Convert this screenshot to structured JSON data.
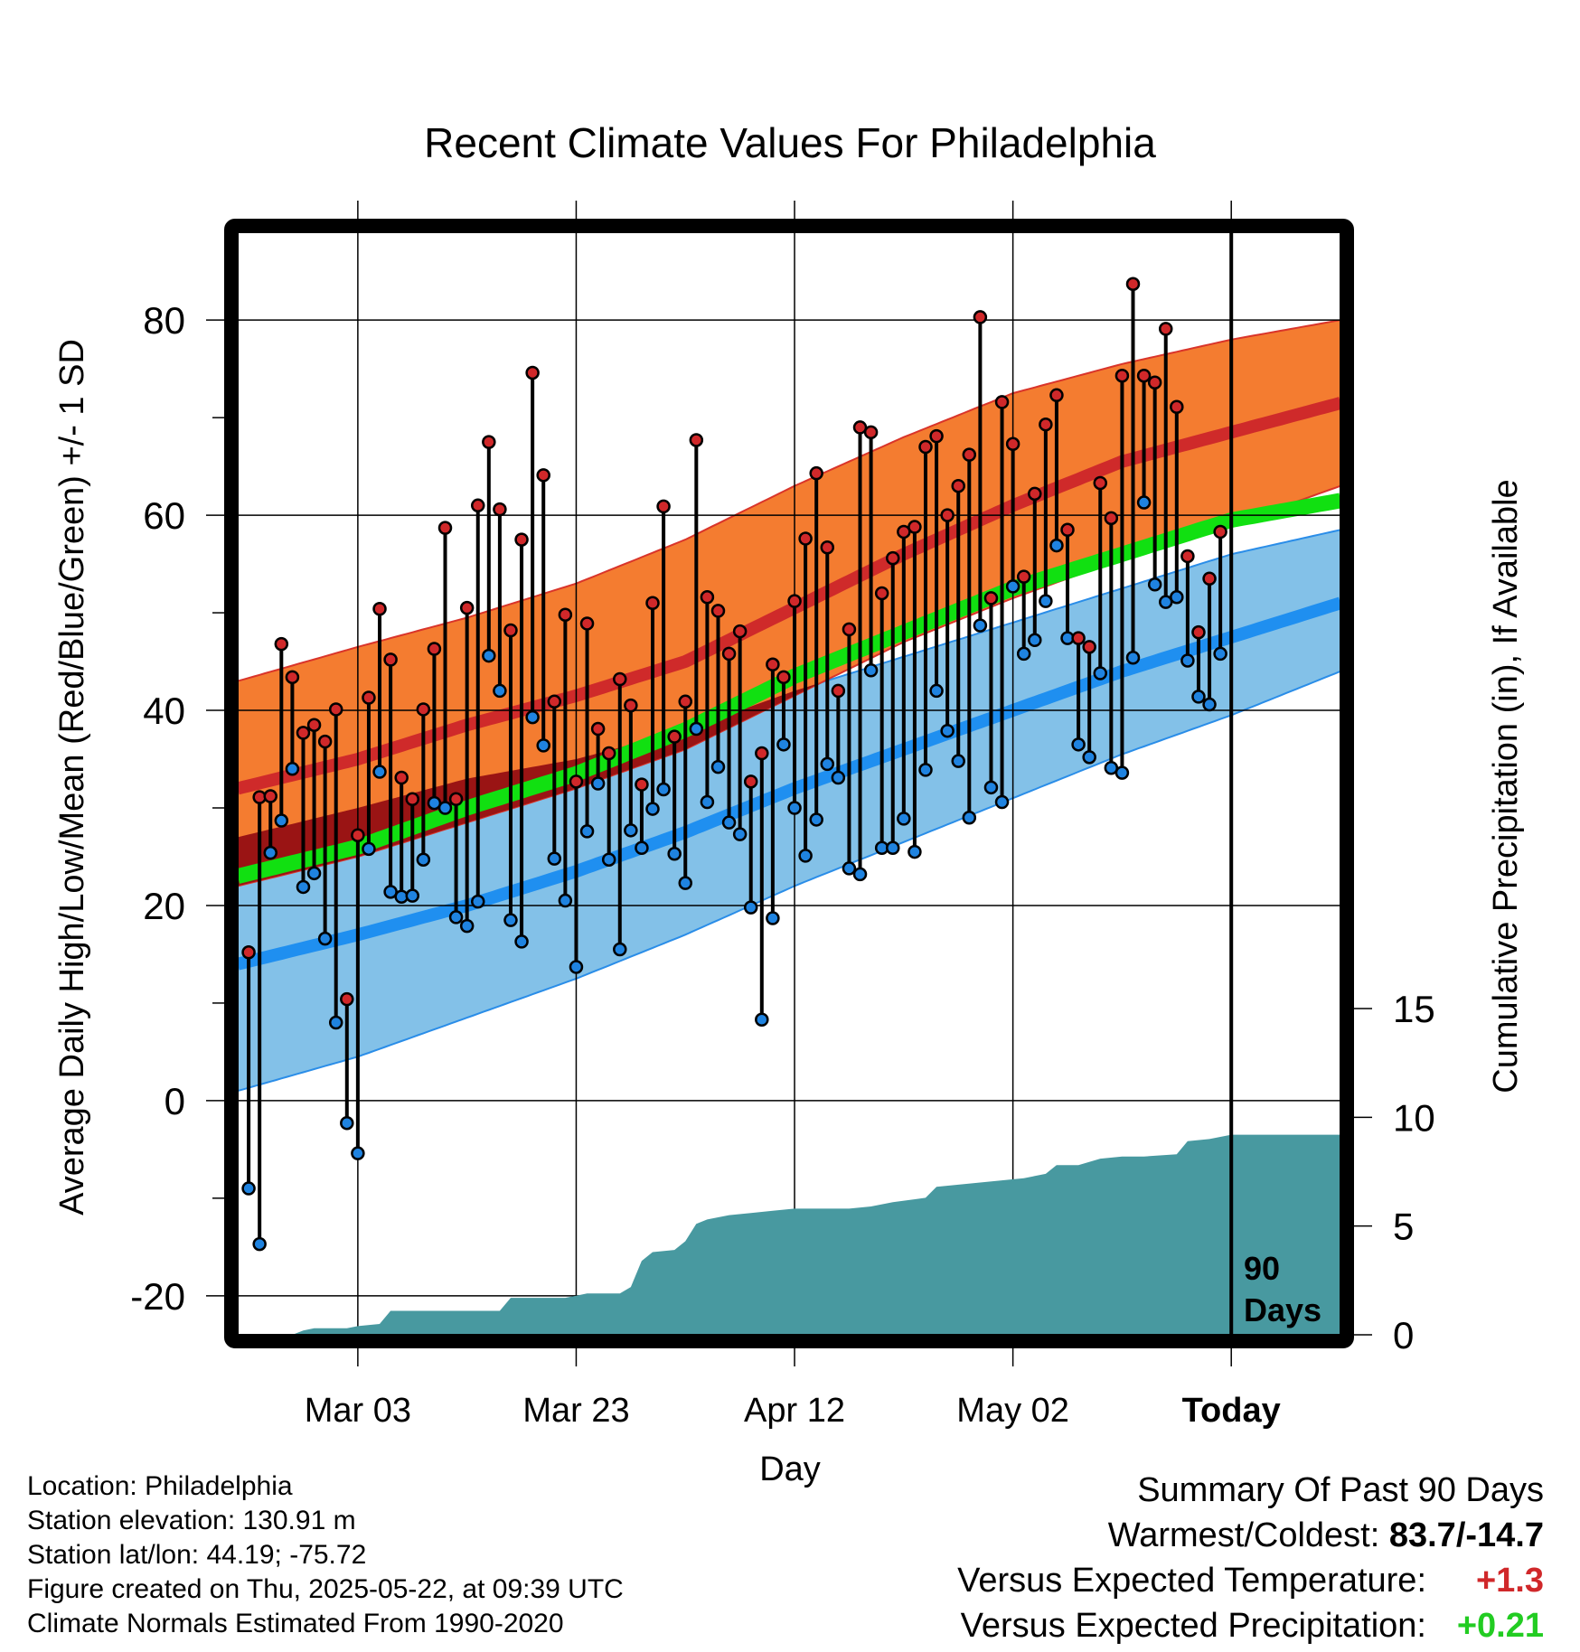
{
  "chart_data": {
    "type": "line",
    "title": "Recent Climate Values For Philadelphia",
    "xlabel": "Day",
    "ylabel": "Average Daily High/Low/Mean (Red/Blue/Green) +/- 1 SD",
    "ylabel_right": "Cumulative Precipitation (in), If Available",
    "ylim": [
      -24,
      89
    ],
    "y_ticks": [
      "80",
      "60",
      "40",
      "20",
      "0",
      "-20"
    ],
    "y_tick_values": [
      80,
      60,
      40,
      20,
      0,
      -20
    ],
    "y2_ticks": [
      "15",
      "10",
      "5",
      "0"
    ],
    "y2_tick_values": [
      15,
      10,
      5,
      0
    ],
    "x_ticks": [
      {
        "day": 10,
        "label": "Mar 03"
      },
      {
        "day": 30,
        "label": "Mar 23"
      },
      {
        "day": 50,
        "label": "Apr 12"
      },
      {
        "day": 70,
        "label": "May 02"
      },
      {
        "day": 90,
        "label": "Today"
      }
    ],
    "today_label": [
      "90",
      "Days"
    ],
    "x_range": [
      -1,
      100
    ],
    "colors": {
      "high_band": "#f47c30",
      "high_band_edge": "#d9342a",
      "high_mean": "#cf2a2a",
      "low_band": "#83c1e8",
      "low_band_edge": "#2a8de8",
      "low_mean": "#1f8ff0",
      "mean": "#11e011",
      "precip": "#4899a0",
      "high_dot": "#d0282a",
      "low_dot": "#1f83e0"
    },
    "normals": {
      "days": [
        -1,
        10,
        20,
        30,
        40,
        50,
        60,
        70,
        80,
        90,
        100
      ],
      "high_upper": [
        43,
        46.5,
        49.5,
        53,
        57.5,
        63,
        68,
        72.5,
        75.5,
        78,
        80
      ],
      "high_mean": [
        32,
        35,
        38.5,
        41.5,
        45,
        50.5,
        56,
        61,
        65.5,
        68.5,
        71.5
      ],
      "high_lower": [
        22,
        25,
        28.5,
        32,
        36,
        41.5,
        47,
        51.5,
        55.5,
        59,
        63
      ],
      "mean": [
        23,
        26,
        30,
        33.5,
        38,
        43.5,
        48,
        52.5,
        56,
        59.5,
        61.5
      ],
      "low_upper": [
        27,
        30,
        33,
        35,
        38,
        42,
        45.5,
        49,
        52.5,
        56,
        58.5
      ],
      "low_mean": [
        14,
        17,
        20,
        23.5,
        27.5,
        32,
        36,
        40,
        44,
        47.5,
        51
      ],
      "low_lower": [
        1,
        4.5,
        8.5,
        12.5,
        17,
        22,
        26.5,
        31,
        35.5,
        39.5,
        44
      ]
    },
    "series": [
      {
        "name": "High",
        "values": [
          15.2,
          31.1,
          31.2,
          46.8,
          43.4,
          37.7,
          38.5,
          36.8,
          40.1,
          10.4,
          27.2,
          41.3,
          50.4,
          45.2,
          33.1,
          30.9,
          40.1,
          46.3,
          58.7,
          30.9,
          50.5,
          61,
          67.5,
          60.6,
          48.2,
          57.5,
          74.6,
          64.1,
          40.9,
          49.8,
          32.7,
          48.9,
          38.1,
          35.6,
          43.2,
          40.5,
          32.4,
          51,
          60.9,
          37.3,
          40.9,
          67.7,
          51.6,
          50.2,
          45.8,
          48.1,
          32.7,
          35.6,
          44.7,
          43.4,
          51.2,
          57.6,
          64.3,
          56.7,
          42,
          48.3,
          69,
          68.5,
          52,
          55.6,
          58.3,
          58.8,
          67,
          68.1,
          60,
          63,
          66.2,
          80.3,
          51.5,
          71.6,
          67.3,
          53.7,
          62.2,
          69.3,
          72.3,
          58.5,
          47.4,
          46.5,
          63.3,
          59.7,
          74.3,
          83.7,
          74.3,
          73.6,
          79.1,
          71.1,
          55.8,
          48,
          53.5,
          58.3
        ]
      },
      {
        "name": "Low",
        "values": [
          -9,
          -14.7,
          25.4,
          28.7,
          34,
          21.9,
          23.3,
          16.6,
          8,
          -2.3,
          -5.4,
          25.8,
          33.7,
          21.4,
          20.9,
          21,
          24.7,
          30.5,
          30,
          18.8,
          17.9,
          20.4,
          45.6,
          42,
          18.5,
          16.3,
          39.3,
          36.4,
          24.8,
          20.5,
          13.7,
          27.6,
          32.5,
          24.7,
          15.5,
          27.7,
          25.9,
          29.9,
          31.9,
          25.3,
          22.3,
          38.1,
          30.6,
          34.2,
          28.5,
          27.3,
          19.8,
          8.3,
          18.7,
          36.5,
          30,
          25.1,
          28.8,
          34.5,
          33.1,
          23.8,
          23.2,
          44.1,
          25.9,
          25.9,
          28.9,
          25.5,
          33.9,
          42,
          37.9,
          34.8,
          29,
          48.7,
          32.1,
          30.6,
          52.7,
          45.8,
          47.2,
          51.2,
          56.9,
          47.4,
          36.5,
          35.2,
          43.8,
          34.1,
          33.6,
          45.4,
          61.3,
          52.9,
          51.1,
          51.6,
          45.1,
          41.4,
          40.6,
          45.8
        ]
      }
    ],
    "precip_cumulative": {
      "days": [
        -1,
        4,
        5,
        6,
        9,
        10,
        12,
        13,
        23,
        24,
        29,
        30,
        31,
        34,
        35,
        36,
        37,
        39,
        40,
        41,
        42,
        43,
        44,
        46,
        48,
        50,
        52,
        55,
        57,
        59,
        62,
        63,
        65,
        69,
        71,
        73,
        74,
        76,
        78,
        80,
        82,
        85,
        86,
        88,
        89,
        90,
        100
      ],
      "values": [
        0,
        0,
        0.2,
        0.3,
        0.3,
        0.4,
        0.5,
        1.1,
        1.1,
        1.7,
        1.7,
        1.8,
        1.9,
        1.9,
        2.2,
        3.4,
        3.8,
        3.9,
        4.3,
        5.1,
        5.3,
        5.4,
        5.5,
        5.6,
        5.7,
        5.8,
        5.8,
        5.8,
        5.9,
        6.1,
        6.3,
        6.8,
        6.9,
        7.1,
        7.2,
        7.4,
        7.8,
        7.8,
        8.1,
        8.2,
        8.2,
        8.3,
        8.9,
        9,
        9.1,
        9.2,
        9.2
      ]
    }
  },
  "footer": {
    "location": "Location: Philadelphia",
    "elevation": "Station elevation: 130.91 m",
    "latlon": "Station lat/lon: 44.19; -75.72",
    "created": "Figure created on Thu, 2025-05-22, at 09:39 UTC",
    "normals": "Climate Normals Estimated From 1990-2020"
  },
  "summary": {
    "title": "Summary Of Past 90 Days",
    "warmest_label": "Warmest/Coldest: ",
    "warmest_value": "83.7/-14.7",
    "temp_label": "Versus Expected Temperature:",
    "temp_value": "+1.3",
    "temp_color": "#d0282a",
    "precip_label": "Versus Expected Precipitation:",
    "precip_value": "+0.21",
    "precip_color": "#22cc22"
  }
}
